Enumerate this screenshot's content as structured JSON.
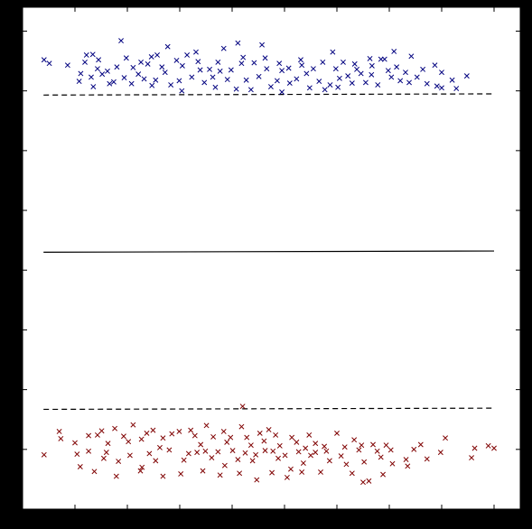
{
  "chart_data": {
    "type": "scatter",
    "title": "",
    "xlabel": "",
    "ylabel": "",
    "xlim": [
      -1.0,
      8.5
    ],
    "ylim": [
      -1.0,
      7.4
    ],
    "grid": false,
    "legend": "none",
    "colors": {
      "figure_background": "#000000",
      "plot_background": "#ffffff",
      "class_a": "#00007f",
      "class_b": "#7f0000",
      "boundary": "#000000",
      "margin": "#000000"
    },
    "lines": [
      {
        "name": "decision-boundary",
        "style": "solid",
        "x": [
          -0.6,
          8.0
        ],
        "y": [
          3.3,
          3.32
        ]
      },
      {
        "name": "margin-upper",
        "style": "dashed",
        "x": [
          -0.6,
          8.0
        ],
        "y": [
          5.93,
          5.95
        ]
      },
      {
        "name": "margin-lower",
        "style": "dashed",
        "x": [
          -0.6,
          8.0
        ],
        "y": [
          0.67,
          0.69
        ]
      }
    ],
    "series": [
      {
        "marker": "x",
        "color": "#00007f",
        "points": [
          [
            0.88,
            6.84
          ],
          [
            -0.59,
            6.52
          ],
          [
            -0.49,
            6.46
          ],
          [
            0.11,
            6.29
          ],
          [
            0.43,
            6.37
          ],
          [
            0.62,
            6.33
          ],
          [
            1.57,
            6.6
          ],
          [
            0.34,
            6.61
          ],
          [
            1.77,
            6.74
          ],
          [
            2.31,
            6.65
          ],
          [
            2.84,
            6.71
          ],
          [
            3.11,
            6.8
          ],
          [
            3.57,
            6.77
          ],
          [
            4.31,
            6.52
          ],
          [
            4.92,
            6.65
          ],
          [
            5.38,
            6.36
          ],
          [
            5.67,
            6.42
          ],
          [
            5.91,
            6.53
          ],
          [
            6.09,
            6.66
          ],
          [
            6.42,
            6.58
          ],
          [
            6.87,
            6.43
          ],
          [
            7.0,
            6.31
          ],
          [
            7.2,
            6.18
          ],
          [
            7.48,
            6.25
          ],
          [
            6.72,
            6.12
          ],
          [
            7.28,
            6.04
          ],
          [
            7.0,
            6.05
          ],
          [
            6.38,
            6.14
          ],
          [
            5.98,
            6.34
          ],
          [
            5.46,
            6.29
          ],
          [
            5.21,
            6.25
          ],
          [
            4.98,
            6.37
          ],
          [
            4.77,
            6.02
          ],
          [
            4.23,
            6.2
          ],
          [
            3.95,
            6.34
          ],
          [
            3.63,
            6.55
          ],
          [
            3.18,
            6.46
          ],
          [
            2.73,
            6.48
          ],
          [
            2.39,
            6.35
          ],
          [
            2.05,
            6.42
          ],
          [
            1.72,
            6.31
          ],
          [
            1.39,
            6.45
          ],
          [
            1.11,
            6.39
          ],
          [
            0.94,
            6.22
          ],
          [
            0.66,
            6.12
          ],
          [
            0.35,
            6.07
          ],
          [
            0.08,
            6.16
          ],
          [
            -0.14,
            6.43
          ],
          [
            0.22,
            6.6
          ],
          [
            0.45,
            6.52
          ],
          [
            0.8,
            6.4
          ],
          [
            1.08,
            6.12
          ],
          [
            1.32,
            6.2
          ],
          [
            1.54,
            6.18
          ],
          [
            1.83,
            6.1
          ],
          [
            2.04,
            6.0
          ],
          [
            2.23,
            6.23
          ],
          [
            2.47,
            6.14
          ],
          [
            2.63,
            6.23
          ],
          [
            2.91,
            6.19
          ],
          [
            3.08,
            6.03
          ],
          [
            3.27,
            6.18
          ],
          [
            3.51,
            6.24
          ],
          [
            3.74,
            6.07
          ],
          [
            3.86,
            6.17
          ],
          [
            4.1,
            6.13
          ],
          [
            4.42,
            6.29
          ],
          [
            4.66,
            6.16
          ],
          [
            4.87,
            6.1
          ],
          [
            5.05,
            6.21
          ],
          [
            5.29,
            6.13
          ],
          [
            5.55,
            6.14
          ],
          [
            5.78,
            6.1
          ],
          [
            6.21,
            6.17
          ],
          [
            6.53,
            6.23
          ],
          [
            6.91,
            6.08
          ],
          [
            0.19,
            6.48
          ],
          [
            0.52,
            6.28
          ],
          [
            0.98,
            6.55
          ],
          [
            1.26,
            6.48
          ],
          [
            1.46,
            6.57
          ],
          [
            1.66,
            6.4
          ],
          [
            1.94,
            6.51
          ],
          [
            2.14,
            6.6
          ],
          [
            2.35,
            6.49
          ],
          [
            2.57,
            6.36
          ],
          [
            2.77,
            6.33
          ],
          [
            2.98,
            6.35
          ],
          [
            3.21,
            6.56
          ],
          [
            3.42,
            6.47
          ],
          [
            3.66,
            6.37
          ],
          [
            3.9,
            6.46
          ],
          [
            4.08,
            6.38
          ],
          [
            4.33,
            6.43
          ],
          [
            4.55,
            6.37
          ],
          [
            4.73,
            6.48
          ],
          [
            5.12,
            6.48
          ],
          [
            5.34,
            6.45
          ],
          [
            5.63,
            6.54
          ],
          [
            5.84,
            6.53
          ],
          [
            6.04,
            6.23
          ],
          [
            6.31,
            6.31
          ],
          [
            6.64,
            6.36
          ],
          [
            0.31,
            6.23
          ],
          [
            0.74,
            6.15
          ],
          [
            1.21,
            6.28
          ],
          [
            1.47,
            6.09
          ],
          [
            1.99,
            6.17
          ],
          [
            2.68,
            6.06
          ],
          [
            3.36,
            6.02
          ],
          [
            3.95,
            5.98
          ],
          [
            4.48,
            6.05
          ],
          [
            5.02,
            6.06
          ],
          [
            5.66,
            6.27
          ],
          [
            6.14,
            6.4
          ]
        ]
      },
      {
        "marker": "x",
        "color": "#7f0000",
        "points": [
          [
            -0.59,
            -0.09
          ],
          [
            0.26,
            0.23
          ],
          [
            0.43,
            0.24
          ],
          [
            0.63,
            0.1
          ],
          [
            0.93,
            0.22
          ],
          [
            1.27,
            0.17
          ],
          [
            1.49,
            0.32
          ],
          [
            1.85,
            0.26
          ],
          [
            2.21,
            0.32
          ],
          [
            2.51,
            0.4
          ],
          [
            2.84,
            0.3
          ],
          [
            3.18,
            0.38
          ],
          [
            3.53,
            0.27
          ],
          [
            3.83,
            0.24
          ],
          [
            4.14,
            0.2
          ],
          [
            4.59,
            0.1
          ],
          [
            5.0,
            0.27
          ],
          [
            5.33,
            0.16
          ],
          [
            5.69,
            0.08
          ],
          [
            6.03,
            -0.01
          ],
          [
            6.47,
            0.0
          ],
          [
            7.07,
            0.19
          ],
          [
            7.63,
            0.02
          ],
          [
            8.0,
            0.02
          ],
          [
            7.89,
            0.06
          ],
          [
            7.57,
            -0.14
          ],
          [
            6.98,
            -0.05
          ],
          [
            6.72,
            -0.16
          ],
          [
            6.32,
            -0.17
          ],
          [
            6.06,
            -0.24
          ],
          [
            5.84,
            -0.13
          ],
          [
            5.52,
            -0.21
          ],
          [
            5.18,
            -0.25
          ],
          [
            4.86,
            -0.19
          ],
          [
            4.59,
            -0.05
          ],
          [
            4.36,
            -0.23
          ],
          [
            4.12,
            -0.33
          ],
          [
            3.88,
            -0.15
          ],
          [
            3.63,
            -0.02
          ],
          [
            3.39,
            -0.19
          ],
          [
            3.11,
            -0.17
          ],
          [
            2.86,
            -0.27
          ],
          [
            2.61,
            -0.14
          ],
          [
            2.33,
            -0.05
          ],
          [
            2.08,
            -0.18
          ],
          [
            1.8,
            -0.01
          ],
          [
            1.54,
            -0.19
          ],
          [
            1.28,
            -0.3
          ],
          [
            1.05,
            -0.1
          ],
          [
            0.83,
            -0.2
          ],
          [
            0.55,
            -0.15
          ],
          [
            0.26,
            -0.03
          ],
          [
            0.04,
            -0.08
          ],
          [
            -0.27,
            0.18
          ],
          [
            0.0,
            0.11
          ],
          [
            0.51,
            0.31
          ],
          [
            0.76,
            0.35
          ],
          [
            1.11,
            0.41
          ],
          [
            1.37,
            0.27
          ],
          [
            1.68,
            0.19
          ],
          [
            1.99,
            0.3
          ],
          [
            2.29,
            0.23
          ],
          [
            2.64,
            0.21
          ],
          [
            2.97,
            0.2
          ],
          [
            3.28,
            0.2
          ],
          [
            3.61,
            0.14
          ],
          [
            3.91,
            0.06
          ],
          [
            4.23,
            0.12
          ],
          [
            4.47,
            0.24
          ],
          [
            4.76,
            0.05
          ],
          [
            5.15,
            0.04
          ],
          [
            5.47,
            0.07
          ],
          [
            5.77,
            -0.03
          ],
          [
            5.94,
            0.07
          ],
          [
            0.37,
            -0.37
          ],
          [
            0.79,
            -0.45
          ],
          [
            1.25,
            -0.36
          ],
          [
            1.68,
            -0.45
          ],
          [
            2.02,
            -0.41
          ],
          [
            2.44,
            -0.36
          ],
          [
            2.77,
            -0.43
          ],
          [
            3.14,
            -0.4
          ],
          [
            3.47,
            -0.51
          ],
          [
            3.76,
            -0.39
          ],
          [
            4.05,
            -0.47
          ],
          [
            4.33,
            -0.38
          ],
          [
            4.69,
            -0.38
          ],
          [
            5.29,
            -0.4
          ],
          [
            5.61,
            -0.53
          ],
          [
            6.35,
            -0.28
          ],
          [
            5.88,
            -0.42
          ],
          [
            0.1,
            -0.29
          ],
          [
            0.6,
            -0.05
          ],
          [
            1.42,
            -0.07
          ],
          [
            2.17,
            -0.07
          ],
          [
            2.49,
            -0.03
          ],
          [
            2.73,
            -0.04
          ],
          [
            3.01,
            -0.02
          ],
          [
            3.25,
            -0.06
          ],
          [
            3.45,
            -0.09
          ],
          [
            3.78,
            -0.03
          ],
          [
            4.01,
            -0.1
          ],
          [
            4.27,
            -0.04
          ],
          [
            4.5,
            -0.1
          ],
          [
            4.8,
            -0.03
          ],
          [
            5.08,
            -0.11
          ],
          [
            5.42,
            -0.01
          ],
          [
            1.02,
            0.13
          ],
          [
            1.62,
            0.03
          ],
          [
            2.4,
            0.08
          ],
          [
            2.9,
            0.12
          ],
          [
            3.36,
            0.07
          ],
          [
            3.7,
            0.33
          ],
          [
            4.4,
            0.02
          ],
          [
            3.2,
            0.72
          ],
          [
            -0.3,
            0.3
          ],
          [
            6.6,
            0.08
          ],
          [
            5.5,
            -0.55
          ]
        ]
      }
    ]
  }
}
